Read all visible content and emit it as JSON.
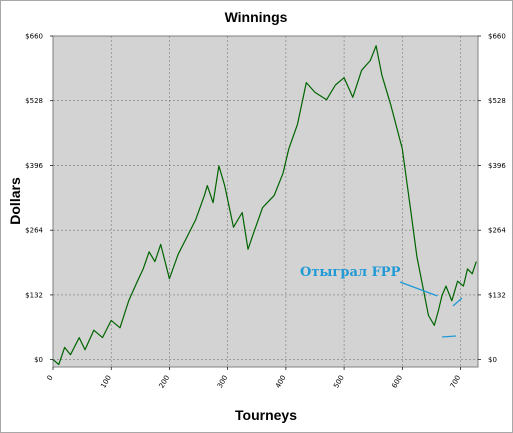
{
  "chart_data": {
    "type": "line",
    "title": "Winnings",
    "xlabel": "Tourneys",
    "ylabel": "Dollars",
    "xlim": [
      0,
      730
    ],
    "ylim": [
      -15,
      660
    ],
    "x_ticks": [
      0,
      100,
      200,
      300,
      400,
      500,
      600,
      700
    ],
    "x_tick_labels": [
      "0",
      "100",
      "200",
      "300",
      "400",
      "500",
      "600",
      "700"
    ],
    "y_ticks": [
      0,
      132,
      264,
      396,
      528,
      660
    ],
    "y_tick_labels": [
      "$0",
      "$132",
      "$264",
      "$396",
      "$528",
      "$660"
    ],
    "grid": true,
    "legend": "none",
    "series": [
      {
        "color": "#006400",
        "x": [
          0,
          10,
          20,
          30,
          45,
          55,
          70,
          85,
          100,
          115,
          130,
          145,
          155,
          165,
          175,
          185,
          200,
          215,
          230,
          245,
          260,
          265,
          275,
          285,
          295,
          310,
          325,
          335,
          345,
          360,
          380,
          395,
          405,
          420,
          435,
          450,
          470,
          485,
          500,
          515,
          530,
          545,
          555,
          565,
          580,
          600,
          615,
          625,
          635,
          645,
          655,
          662,
          668,
          675,
          685,
          695,
          705,
          712,
          720,
          727
        ],
        "y": [
          0,
          -10,
          25,
          10,
          45,
          20,
          60,
          45,
          80,
          65,
          120,
          160,
          185,
          220,
          200,
          235,
          165,
          215,
          250,
          285,
          335,
          355,
          320,
          395,
          355,
          270,
          300,
          225,
          260,
          310,
          335,
          380,
          430,
          480,
          565,
          545,
          530,
          560,
          575,
          535,
          590,
          610,
          640,
          580,
          520,
          430,
          300,
          210,
          150,
          90,
          70,
          100,
          130,
          150,
          120,
          160,
          150,
          185,
          175,
          200
        ]
      }
    ],
    "annotations": [
      {
        "text": "Отыграл FPP",
        "color": "#1f9ad6",
        "target_x": 660,
        "target_y": 130
      }
    ]
  }
}
